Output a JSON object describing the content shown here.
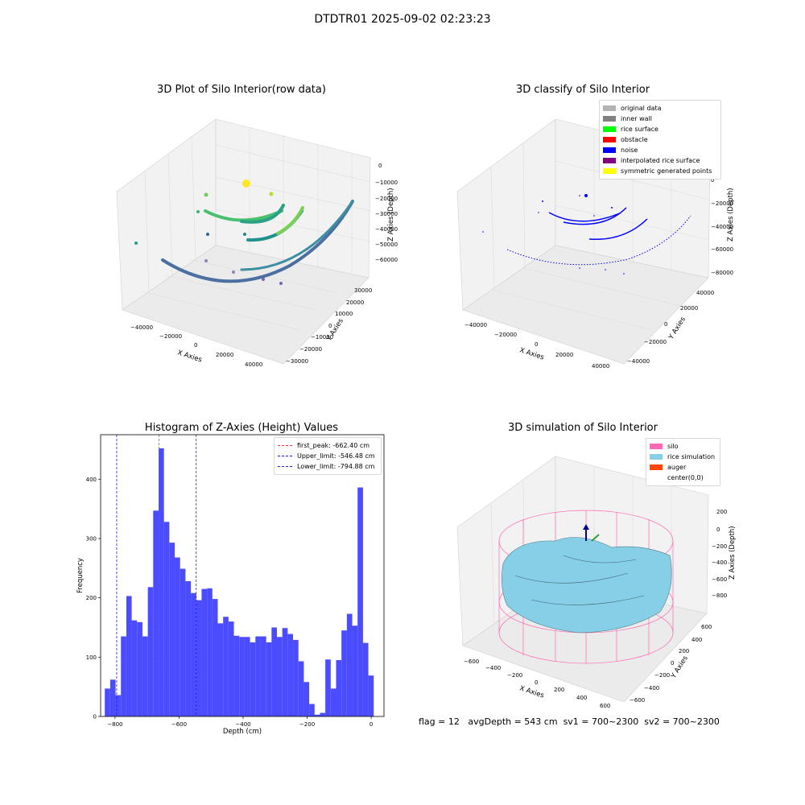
{
  "page_title": "DTDTR01 2025-09-02 02:23:23",
  "status": {
    "flag": "flag = 12",
    "avg_depth": "avgDepth = 543 cm",
    "sv1": "sv1 = 700~2300",
    "sv2": "sv2 = 700~2300"
  },
  "colors": {
    "bar": "#4b4bff",
    "first_peak": "#ff3030",
    "limit": "#1f1fd0",
    "silo_wire": "#ff69b4",
    "rice_surface": "#87cfe6"
  },
  "chart_data": [
    {
      "type": "scatter",
      "title": "3D Plot of Silo Interior(row data)",
      "xlabel": "X Axies",
      "ylabel": "Y Axies",
      "zlabel": "Z Axies (Depth)",
      "x_ticks": [
        "−40000",
        "−20000",
        "0",
        "20000",
        "40000"
      ],
      "y_ticks": [
        "30000",
        "20000",
        "10000",
        "0",
        "−10000",
        "−20000",
        "−30000"
      ],
      "z_ticks": [
        "0",
        "−10000",
        "−20000",
        "−30000",
        "−40000",
        "−50000",
        "−60000"
      ],
      "colormap": "viridis"
    },
    {
      "type": "scatter",
      "title": "3D classify of Silo Interior",
      "xlabel": "X Axies",
      "ylabel": "Y Axies",
      "zlabel": "Z Axies (Depth)",
      "x_ticks": [
        "−40000",
        "−20000",
        "0",
        "20000",
        "40000"
      ],
      "y_ticks": [
        "40000",
        "20000",
        "0",
        "−20000",
        "−40000"
      ],
      "z_ticks": [
        "0",
        "−20000",
        "−40000",
        "−60000",
        "−80000"
      ],
      "legend": [
        {
          "label": "original data",
          "color": "#b3b3b3"
        },
        {
          "label": "inner wall",
          "color": "#808080"
        },
        {
          "label": "rice surface",
          "color": "#00ff00"
        },
        {
          "label": "obstacle",
          "color": "#ff0000"
        },
        {
          "label": "noise",
          "color": "#0000ff"
        },
        {
          "label": "interpolated rice surface",
          "color": "#800080"
        },
        {
          "label": "symmetric generated points",
          "color": "#ffff00"
        }
      ]
    },
    {
      "type": "bar",
      "title": "Histogram of Z-Axies (Height) Values",
      "xlabel": "Depth (cm)",
      "ylabel": "Frequency",
      "xlim": [
        -845,
        40
      ],
      "ylim": [
        0,
        475
      ],
      "x_ticks": [
        -800,
        -600,
        -400,
        -200,
        0
      ],
      "x_tick_labels": [
        "−800",
        "−600",
        "−400",
        "−200",
        "0"
      ],
      "y_ticks": [
        0,
        100,
        200,
        300,
        400
      ],
      "bin_width": 16.8,
      "bin_start": -832,
      "values": [
        47,
        62,
        36,
        135,
        203,
        162,
        159,
        135,
        218,
        347,
        452,
        328,
        293,
        268,
        249,
        228,
        208,
        196,
        215,
        216,
        198,
        157,
        168,
        160,
        136,
        134,
        134,
        125,
        135,
        135,
        125,
        150,
        134,
        149,
        139,
        129,
        93,
        58,
        21,
        3,
        6,
        96,
        47,
        95,
        145,
        173,
        153,
        386,
        124,
        69
      ],
      "vlines": [
        {
          "name": "first_peak",
          "label": "first_peak: -662.40 cm",
          "x": -662.4,
          "color": "#ff3030"
        },
        {
          "name": "upper-limit",
          "label": "Upper_limit: -546.48 cm",
          "x": -546.48,
          "color": "#1f1fd0"
        },
        {
          "name": "lower-limit",
          "label": "Lower_limit: -794.88 cm",
          "x": -794.88,
          "color": "#1f1fd0"
        }
      ],
      "legend_position": "top-right"
    },
    {
      "type": "surface",
      "title": "3D simulation of Silo Interior",
      "xlabel": "X Axies",
      "ylabel": "Y Axies",
      "zlabel": "Z Axies (Depth)",
      "x_ticks": [
        "−600",
        "−400",
        "−200",
        "0",
        "200",
        "400",
        "600"
      ],
      "y_ticks": [
        "600",
        "400",
        "200",
        "0",
        "−200",
        "−400",
        "−600"
      ],
      "z_ticks": [
        "200",
        "0",
        "−200",
        "−400",
        "−600",
        "−800"
      ],
      "legend": [
        {
          "label": "silo",
          "color": "#ff69b4"
        },
        {
          "label": "rice simulation",
          "color": "#87cfe6"
        },
        {
          "label": "auger",
          "color": "#ff4500"
        },
        {
          "label": "center(0,0)",
          "color": ""
        }
      ]
    }
  ]
}
